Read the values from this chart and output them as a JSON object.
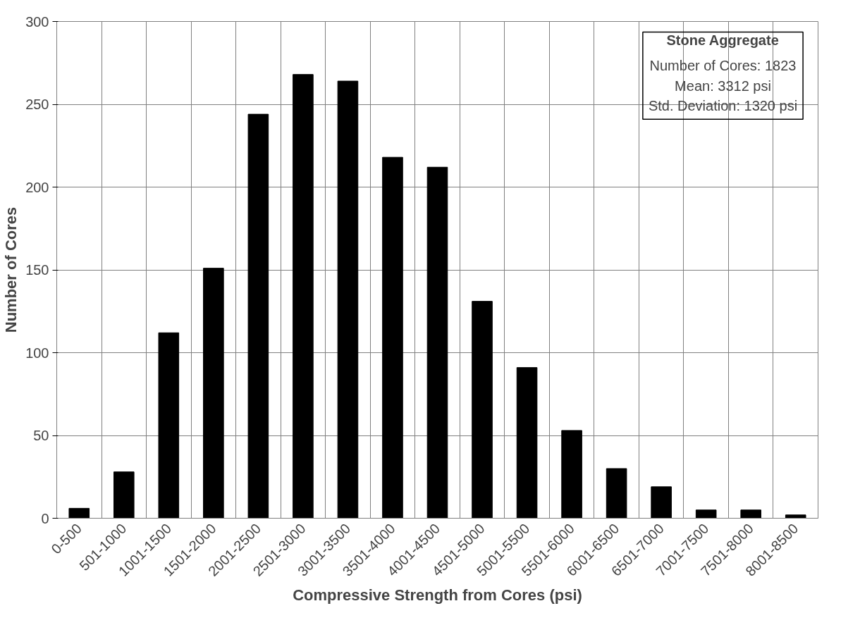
{
  "chart_data": {
    "type": "bar",
    "xlabel": "Compressive Strength from Cores (psi)",
    "ylabel": "Number of Cores",
    "categories": [
      "0-500",
      "501-1000",
      "1001-1500",
      "1501-2000",
      "2001-2500",
      "2501-3000",
      "3001-3500",
      "3501-4000",
      "4001-4500",
      "4501-5000",
      "5001-5500",
      "5501-6000",
      "6001-6500",
      "6501-7000",
      "7001-7500",
      "7501-8000",
      "8001-8500"
    ],
    "values": [
      6,
      28,
      112,
      151,
      244,
      268,
      264,
      218,
      212,
      131,
      91,
      53,
      30,
      19,
      5,
      5,
      2
    ],
    "color": "#000000",
    "ylim": [
      0,
      300
    ],
    "yticks": [
      0,
      50,
      100,
      150,
      200,
      250,
      300
    ],
    "grid": true,
    "annotations": [
      "Stone Aggregate",
      "Number of Cores: 1823",
      "Mean: 3312 psi",
      "Std. Deviation: 1320 psi"
    ]
  }
}
